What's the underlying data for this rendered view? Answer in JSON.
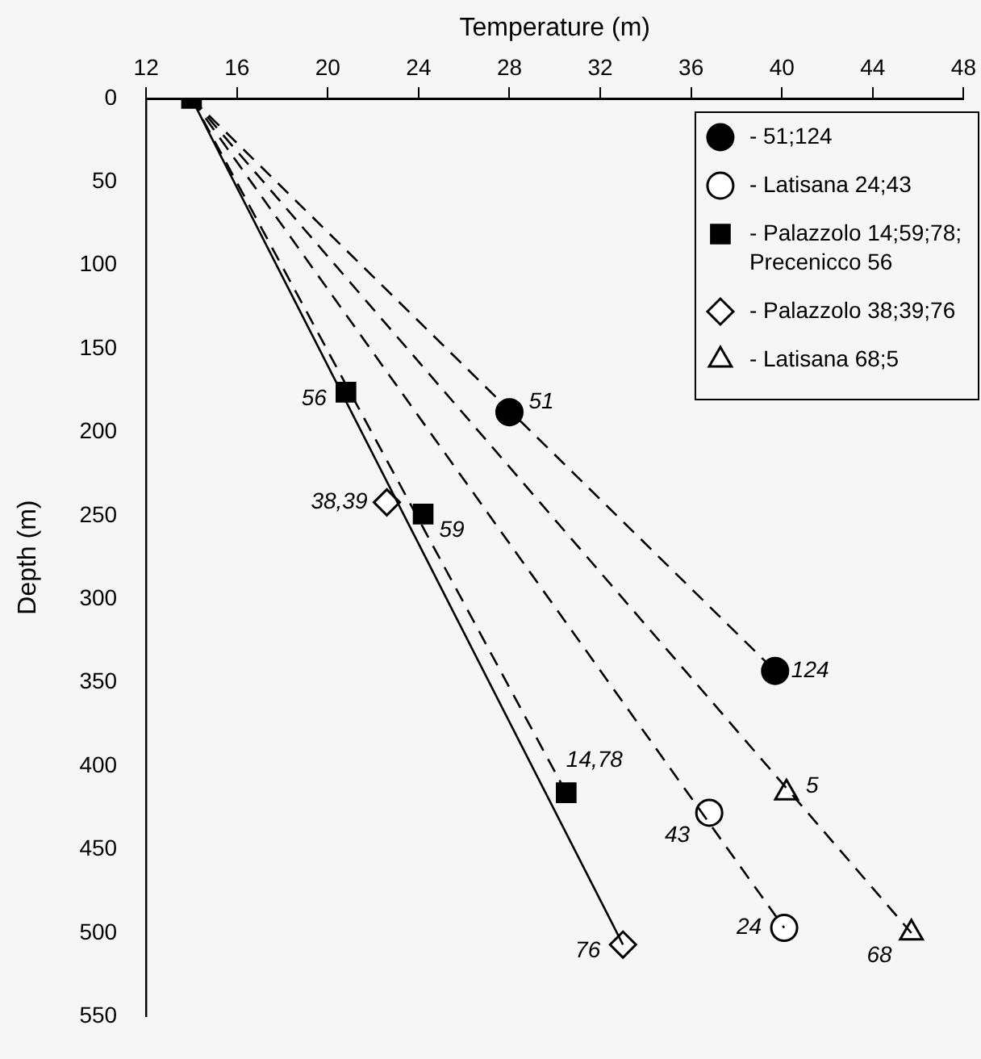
{
  "chart_data": {
    "type": "scatter",
    "xlabel": "Temperature (m)",
    "ylabel": "Depth (m)",
    "xlim": [
      12,
      48
    ],
    "xticks": [
      12,
      16,
      20,
      24,
      28,
      32,
      36,
      40,
      44,
      48
    ],
    "ylim": [
      550,
      0
    ],
    "yticks": [
      0,
      50,
      100,
      150,
      200,
      250,
      300,
      350,
      400,
      450,
      500,
      550
    ],
    "legend": "top right",
    "series": [
      {
        "type": "line",
        "color": "#000000",
        "line_style": "solid",
        "marker": "none",
        "x": [
          14,
          33.0
        ],
        "values": [
          0,
          507
        ]
      },
      {
        "type": "line",
        "color": "#000000",
        "line_style": "dashed",
        "marker": "none",
        "x": [
          14,
          30.5
        ],
        "values": [
          0,
          416
        ]
      },
      {
        "type": "line",
        "color": "#000000",
        "line_style": "dashed",
        "marker": "none",
        "x": [
          14,
          40.1
        ],
        "values": [
          0,
          497
        ]
      },
      {
        "type": "line",
        "color": "#000000",
        "line_style": "dashed",
        "marker": "none",
        "x": [
          14,
          45.7
        ],
        "values": [
          0,
          500
        ]
      },
      {
        "type": "line",
        "color": "#000000",
        "line_style": "dashed",
        "marker": "none",
        "x": [
          14,
          39.7
        ],
        "values": [
          0,
          343
        ]
      },
      {
        "name": "- 51;124",
        "color": "#000000",
        "marker": "circle",
        "x": [
          28.0,
          39.7
        ],
        "values": [
          188,
          343
        ]
      },
      {
        "name": "- Latisana 24;43",
        "color": "#ffffff",
        "marker": "circle",
        "x": [
          40.1,
          36.8
        ],
        "values": [
          497,
          428
        ]
      },
      {
        "name": "- Palazzolo 14;59;78; Precenicco 56",
        "color": "#000000",
        "marker": "square",
        "x": [
          14,
          30.5,
          24.2,
          20.8
        ],
        "values": [
          0,
          416,
          249,
          176
        ]
      },
      {
        "name": "- Palazzolo 38;39;76",
        "color": "#ffffff",
        "marker": "diamond",
        "x": [
          22.6,
          33.0
        ],
        "values": [
          242,
          507
        ]
      },
      {
        "name": "- Latisana 68;5",
        "color": "#ffffff",
        "marker": "triangle",
        "x": [
          45.7,
          40.2
        ],
        "values": [
          500,
          416
        ]
      }
    ],
    "annotations": [
      {
        "text": "51",
        "x": 28.0,
        "y": 188
      },
      {
        "text": "124",
        "x": 39.7,
        "y": 343
      },
      {
        "text": "24",
        "x": 40.1,
        "y": 497
      },
      {
        "text": "43",
        "x": 36.8,
        "y": 428
      },
      {
        "text": "14,78",
        "x": 30.5,
        "y": 416
      },
      {
        "text": "59",
        "x": 24.2,
        "y": 249
      },
      {
        "text": "56",
        "x": 20.8,
        "y": 176
      },
      {
        "text": "38,39",
        "x": 22.6,
        "y": 242
      },
      {
        "text": "76",
        "x": 33.0,
        "y": 507
      },
      {
        "text": "68",
        "x": 45.7,
        "y": 500
      },
      {
        "text": "5",
        "x": 40.2,
        "y": 416
      }
    ]
  }
}
